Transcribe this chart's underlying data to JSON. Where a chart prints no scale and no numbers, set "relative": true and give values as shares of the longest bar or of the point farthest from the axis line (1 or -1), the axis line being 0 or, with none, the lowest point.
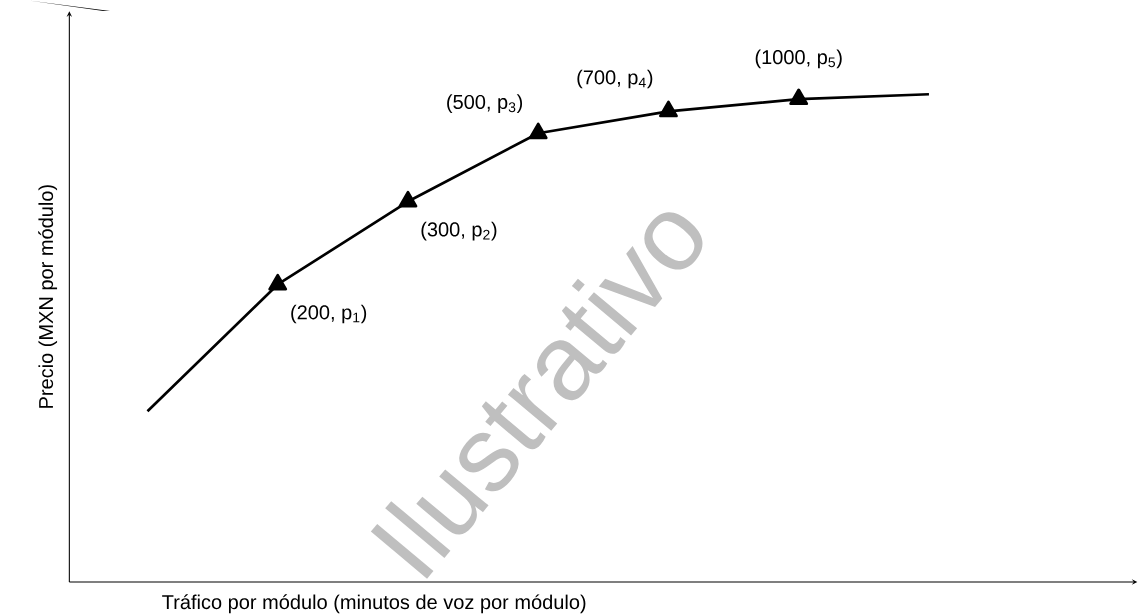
{
  "chart_data": {
    "type": "line",
    "relative": true,
    "xlabel": "Tráfico por módulo (minutos de voz por módulo)",
    "ylabel": "Precio (MXN por módulo)",
    "categories": [
      null,
      null,
      null,
      null,
      null,
      null,
      null
    ],
    "series": [
      {
        "color": "#000000",
        "marker": "triangle",
        "values": [
          0.35,
          0.61,
          0.78,
          0.92,
          0.965,
          0.99,
          1.0
        ]
      }
    ],
    "annotations": [
      "(200, p$_{1}$)",
      "(300, p$_{2}$)",
      "(500, p$_{3}$)",
      "(700, p$_{4}$)",
      "(1000, p$_{5}$)",
      "Ilustrativo"
    ]
  }
}
